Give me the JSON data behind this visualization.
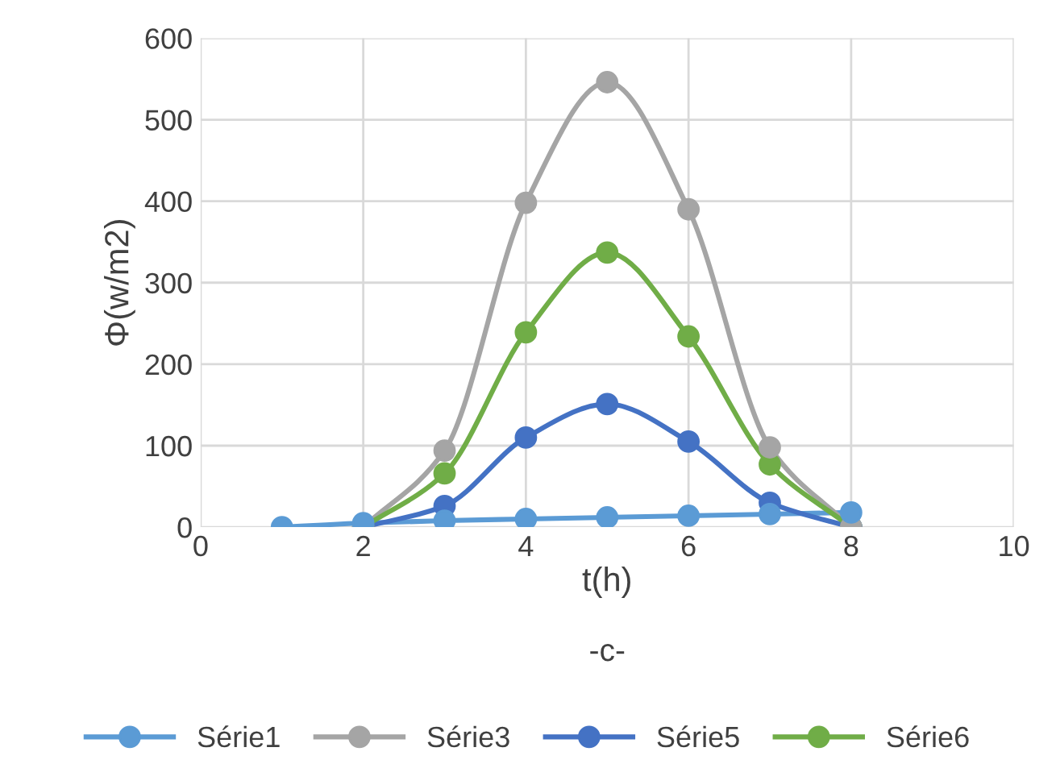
{
  "chart_data": {
    "type": "line",
    "xlabel": "t(h)",
    "ylabel": "Φ(w/m2)",
    "annotations": [
      "-c-"
    ],
    "xlim": [
      0,
      10
    ],
    "xticks": [
      0,
      2,
      4,
      6,
      8,
      10
    ],
    "ylim": [
      0,
      600
    ],
    "yticks": [
      0,
      100,
      200,
      300,
      400,
      500,
      600
    ],
    "grid": true,
    "legend": "bottom",
    "marker": "circle",
    "line_style": "solid",
    "series": [
      {
        "name": "Série1",
        "color": "#5b9bd5",
        "x": [
          1,
          2,
          3,
          4,
          5,
          6,
          7,
          8
        ],
        "values": [
          0,
          5,
          8,
          10,
          12,
          14,
          16,
          18
        ]
      },
      {
        "name": "Série3",
        "color": "#a5a5a5",
        "x": [
          2,
          3,
          4,
          5,
          6,
          7,
          8
        ],
        "values": [
          0,
          94,
          398,
          546,
          390,
          98,
          0
        ]
      },
      {
        "name": "Série5",
        "color": "#4472c4",
        "x": [
          2,
          3,
          4,
          5,
          6,
          7,
          8
        ],
        "values": [
          0,
          26,
          110,
          151,
          105,
          30,
          0
        ]
      },
      {
        "name": "Série6",
        "color": "#70ad47",
        "x": [
          2,
          3,
          4,
          5,
          6,
          7,
          8
        ],
        "values": [
          0,
          66,
          239,
          337,
          234,
          77,
          0
        ]
      }
    ]
  }
}
